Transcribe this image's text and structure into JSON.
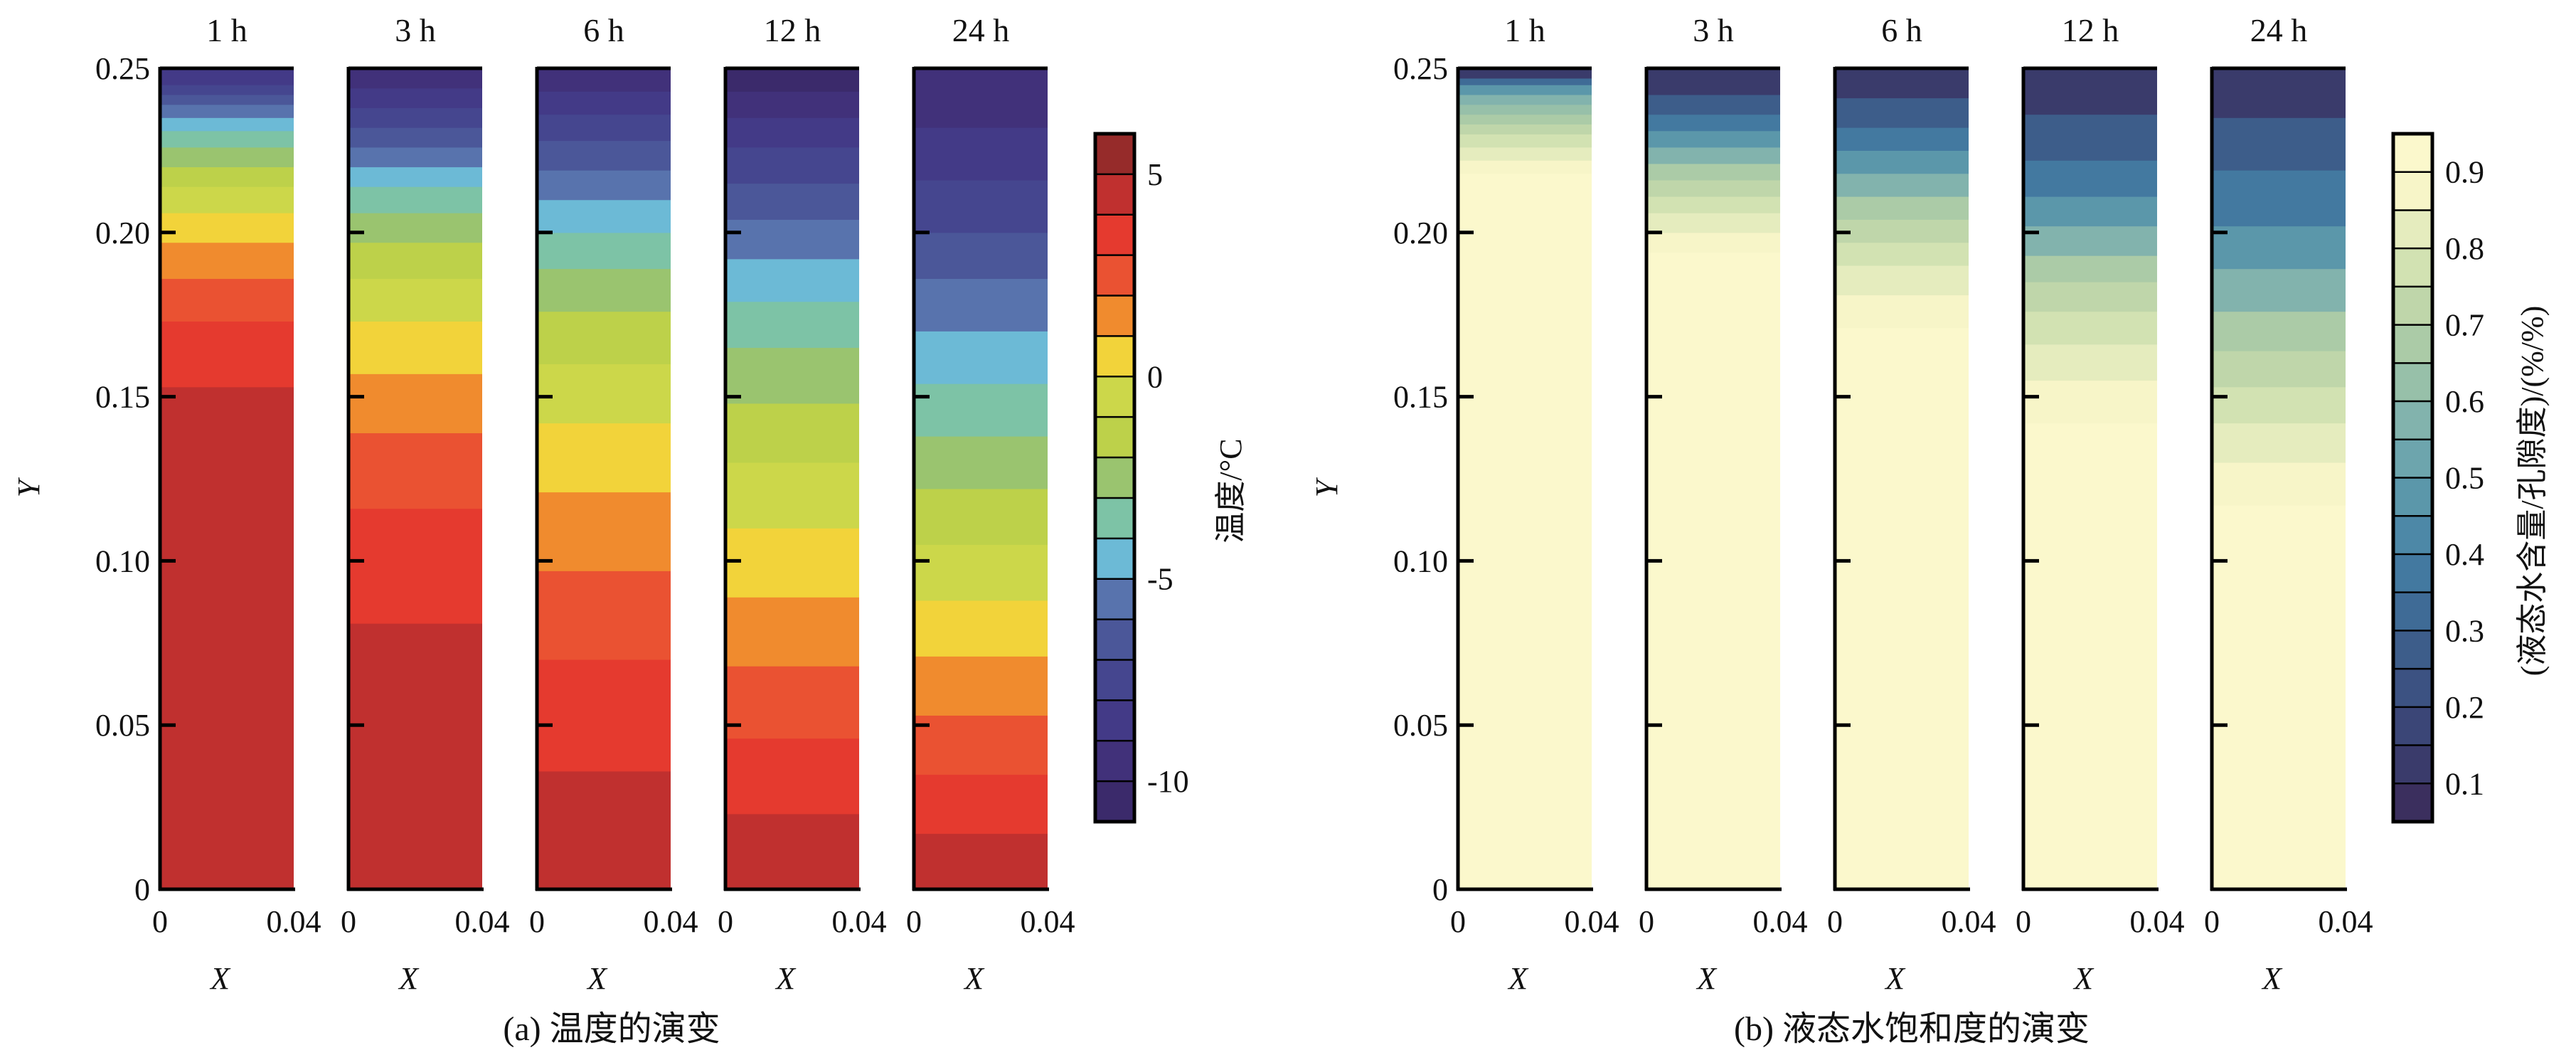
{
  "chart_data": [
    {
      "type": "heatmap",
      "caption": "(a) 温度的演变",
      "panel_titles": [
        "1 h",
        "3 h",
        "6 h",
        "12 h",
        "24 h"
      ],
      "xlabel": "X",
      "ylabel": "Y",
      "xlim": [
        0,
        0.04
      ],
      "ylim": [
        0,
        0.25
      ],
      "x_ticks": [
        "0",
        "0.04"
      ],
      "y_ticks": [
        "0",
        "0.05",
        "0.10",
        "0.15",
        "0.20",
        "0.25"
      ],
      "y_tick_values": [
        0,
        0.05,
        0.1,
        0.15,
        0.2,
        0.25
      ],
      "colorbar": {
        "label": "温度/°C",
        "min": -11,
        "max": 6,
        "ticks": [
          "5",
          "0",
          "-5",
          "-10"
        ],
        "tick_values": [
          5,
          0,
          -5,
          -10
        ],
        "levels": [
          -11,
          -10,
          -9,
          -8,
          -7,
          -6,
          -5,
          -4,
          -3,
          -2,
          -1,
          0,
          1,
          2,
          3,
          4,
          5,
          6
        ],
        "colors": [
          "#3b2a6b",
          "#41317a",
          "#433a87",
          "#45468f",
          "#4b5799",
          "#5873ad",
          "#6cbad6",
          "#7dc3a6",
          "#9ac46f",
          "#bdd14a",
          "#ccd74a",
          "#f2d33a",
          "#f08b2e",
          "#ea5232",
          "#e53a2f",
          "#c0302f",
          "#962b2a",
          "#7a2222"
        ]
      },
      "series": [
        {
          "name": "1 h",
          "boundaries": [
            0,
            0.153,
            0.173,
            0.186,
            0.197,
            0.206,
            0.214,
            0.22,
            0.226,
            0.231,
            0.235,
            0.239,
            0.242,
            0.245,
            0.25
          ],
          "values": [
            4.5,
            3.5,
            2.5,
            1.5,
            0.5,
            -0.5,
            -1.5,
            -2.5,
            -3.5,
            -4.5,
            -5.5,
            -6.5,
            -7.5,
            -8.5
          ]
        },
        {
          "name": "3 h",
          "boundaries": [
            0,
            0.081,
            0.116,
            0.139,
            0.157,
            0.173,
            0.186,
            0.197,
            0.206,
            0.214,
            0.22,
            0.226,
            0.232,
            0.238,
            0.244,
            0.25
          ],
          "values": [
            4.5,
            3.5,
            2.5,
            1.5,
            0.5,
            -0.5,
            -1.5,
            -2.5,
            -3.5,
            -4.5,
            -5.5,
            -6.5,
            -7.5,
            -8.5,
            -9.5
          ]
        },
        {
          "name": "6 h",
          "boundaries": [
            0,
            0.036,
            0.07,
            0.097,
            0.121,
            0.142,
            0.16,
            0.176,
            0.189,
            0.2,
            0.21,
            0.219,
            0.228,
            0.236,
            0.243,
            0.25
          ],
          "values": [
            4.5,
            3.5,
            2.5,
            1.5,
            0.5,
            -0.5,
            -1.5,
            -2.5,
            -3.5,
            -4.5,
            -5.5,
            -6.5,
            -7.5,
            -8.5,
            -9.5
          ]
        },
        {
          "name": "12 h",
          "boundaries": [
            0,
            0.023,
            0.046,
            0.068,
            0.089,
            0.11,
            0.13,
            0.148,
            0.165,
            0.179,
            0.192,
            0.204,
            0.215,
            0.226,
            0.235,
            0.243,
            0.25
          ],
          "values": [
            4.5,
            3.5,
            2.5,
            1.5,
            0.5,
            -0.5,
            -1.5,
            -2.5,
            -3.5,
            -4.5,
            -5.5,
            -6.5,
            -7.5,
            -8.5,
            -9.5,
            -10.5
          ]
        },
        {
          "name": "24 h",
          "boundaries": [
            0,
            0.017,
            0.035,
            0.053,
            0.071,
            0.088,
            0.105,
            0.122,
            0.138,
            0.154,
            0.17,
            0.186,
            0.2,
            0.216,
            0.232,
            0.25
          ],
          "values": [
            4.5,
            3.5,
            2.5,
            1.5,
            0.5,
            -0.5,
            -1.5,
            -2.5,
            -3.5,
            -4.5,
            -5.5,
            -6.5,
            -7.5,
            -8.5,
            -9.5
          ]
        }
      ]
    },
    {
      "type": "heatmap",
      "caption": "(b) 液态水饱和度的演变",
      "panel_titles": [
        "1 h",
        "3 h",
        "6 h",
        "12 h",
        "24 h"
      ],
      "xlabel": "X",
      "ylabel": "Y",
      "xlim": [
        0,
        0.04
      ],
      "ylim": [
        0,
        0.25
      ],
      "x_ticks": [
        "0",
        "0.04"
      ],
      "y_ticks": [
        "0",
        "0.05",
        "0.10",
        "0.15",
        "0.20",
        "0.25"
      ],
      "y_tick_values": [
        0,
        0.05,
        0.1,
        0.15,
        0.2,
        0.25
      ],
      "colorbar": {
        "label": "(液态水含量/孔隙度)/(%/%)",
        "min": 0.05,
        "max": 0.95,
        "ticks": [
          "0.9",
          "0.8",
          "0.7",
          "0.6",
          "0.5",
          "0.4",
          "0.3",
          "0.2",
          "0.1"
        ],
        "tick_values": [
          0.9,
          0.8,
          0.7,
          0.6,
          0.5,
          0.4,
          0.3,
          0.2,
          0.1
        ],
        "levels": [
          0.05,
          0.1,
          0.15,
          0.2,
          0.25,
          0.3,
          0.35,
          0.4,
          0.45,
          0.5,
          0.55,
          0.6,
          0.65,
          0.7,
          0.75,
          0.8,
          0.85,
          0.9,
          0.95
        ],
        "colors": [
          "#3b2f5e",
          "#3a3b6b",
          "#3b4677",
          "#3c5282",
          "#3d5d8a",
          "#3f6b96",
          "#4379a0",
          "#4d88a7",
          "#5b97aa",
          "#6da5ad",
          "#82b3ad",
          "#97c0a9",
          "#abcba7",
          "#bfd6aa",
          "#d2e2b2",
          "#e5ecbe",
          "#f7f5c8",
          "#fbf8cc"
        ]
      },
      "series": [
        {
          "name": "1 h",
          "boundaries": [
            0,
            0.218,
            0.222,
            0.226,
            0.23,
            0.233,
            0.236,
            0.239,
            0.242,
            0.245,
            0.247,
            0.25
          ],
          "values": [
            0.925,
            0.875,
            0.825,
            0.775,
            0.725,
            0.675,
            0.625,
            0.575,
            0.475,
            0.325,
            0.125
          ]
        },
        {
          "name": "3 h",
          "boundaries": [
            0,
            0.194,
            0.2,
            0.206,
            0.211,
            0.216,
            0.221,
            0.226,
            0.231,
            0.236,
            0.242,
            0.25
          ],
          "values": [
            0.925,
            0.875,
            0.825,
            0.775,
            0.725,
            0.675,
            0.575,
            0.475,
            0.375,
            0.275,
            0.125
          ]
        },
        {
          "name": "6 h",
          "boundaries": [
            0,
            0.171,
            0.181,
            0.19,
            0.197,
            0.204,
            0.211,
            0.218,
            0.225,
            0.232,
            0.241,
            0.25
          ],
          "values": [
            0.925,
            0.875,
            0.825,
            0.775,
            0.725,
            0.675,
            0.575,
            0.475,
            0.375,
            0.275,
            0.125
          ]
        },
        {
          "name": "12 h",
          "boundaries": [
            0,
            0.142,
            0.155,
            0.166,
            0.176,
            0.185,
            0.193,
            0.202,
            0.211,
            0.222,
            0.236,
            0.25
          ],
          "values": [
            0.925,
            0.875,
            0.825,
            0.775,
            0.725,
            0.675,
            0.575,
            0.475,
            0.375,
            0.275,
            0.125
          ]
        },
        {
          "name": "24 h",
          "boundaries": [
            0,
            0.117,
            0.13,
            0.142,
            0.153,
            0.164,
            0.176,
            0.189,
            0.202,
            0.219,
            0.235,
            0.25
          ],
          "values": [
            0.925,
            0.875,
            0.825,
            0.775,
            0.725,
            0.675,
            0.575,
            0.475,
            0.375,
            0.275,
            0.125
          ]
        }
      ]
    }
  ]
}
